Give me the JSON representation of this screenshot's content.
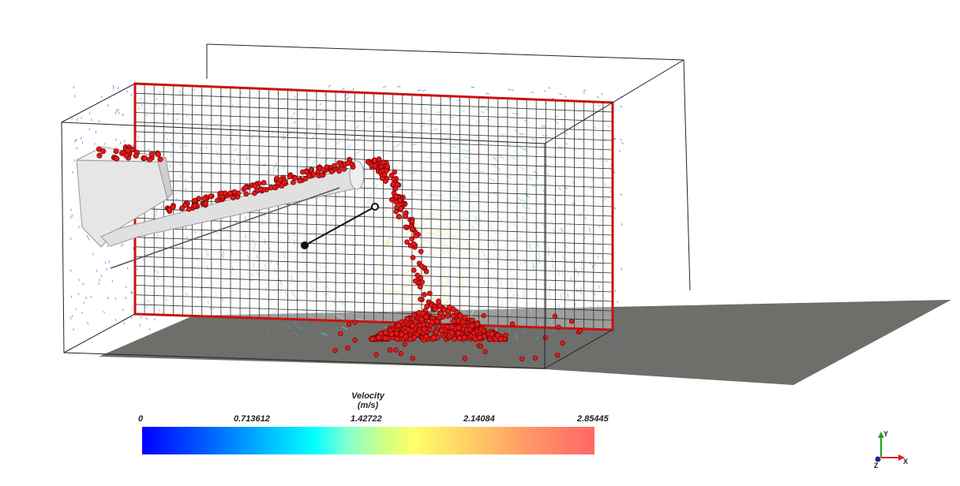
{
  "legend": {
    "title": "Velocity",
    "unit": "(m/s)",
    "ticks": [
      "0",
      "0.713612",
      "1.42722",
      "2.14084",
      "2.85445"
    ],
    "range": [
      0,
      2.85445
    ],
    "colors": [
      "#0000ff",
      "#00ffff",
      "#ffff66",
      "#ff6666"
    ]
  },
  "axes_triad": {
    "x": "X",
    "y": "Y",
    "z": "Z"
  },
  "colors": {
    "particles": "#e41a1a",
    "frame_border": "#cc1111",
    "shadow": "#6e6e6a",
    "chute": "#e6e6e6"
  }
}
